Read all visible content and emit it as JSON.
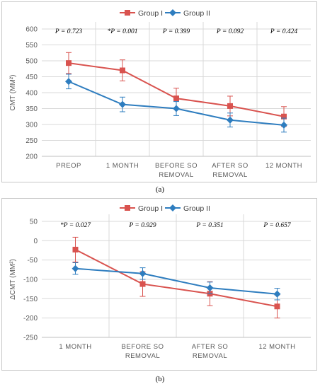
{
  "colors": {
    "group1": "#d9534f",
    "group2": "#2e7dbf",
    "grid": "#d9d9d9",
    "axis_text": "#595959"
  },
  "chart_data": [
    {
      "type": "line",
      "caption": "(a)",
      "legend": [
        "Group I",
        "Group II"
      ],
      "legend_position": "top",
      "ylabel": "CMT (MM²)",
      "ylim": [
        200,
        600
      ],
      "yticks": [
        200,
        250,
        300,
        350,
        400,
        450,
        500,
        550,
        600
      ],
      "grid": true,
      "categories": [
        [
          "PREOP"
        ],
        [
          "1 MONTH"
        ],
        [
          "BEFORE SO",
          "REMOVAL"
        ],
        [
          "AFTER SO",
          "REMOVAL"
        ],
        [
          "12 MONTH"
        ]
      ],
      "pvalues": [
        "P = 0.723",
        "*P = 0.001",
        "P = 0.399",
        "P = 0.092",
        "P = 0.424"
      ],
      "series": [
        {
          "name": "Group I",
          "values": [
            493,
            470,
            382,
            358,
            325
          ],
          "err": [
            33,
            33,
            32,
            31,
            31
          ]
        },
        {
          "name": "Group II",
          "values": [
            435,
            363,
            350,
            314,
            298
          ],
          "err": [
            23,
            23,
            22,
            22,
            22
          ]
        }
      ]
    },
    {
      "type": "line",
      "caption": "(b)",
      "legend": [
        "Group I",
        "Group II"
      ],
      "legend_position": "top",
      "ylabel": "ΔCMT (MM²)",
      "ylim": [
        -250,
        50
      ],
      "yticks": [
        -250,
        -200,
        -150,
        -100,
        -50,
        0,
        50
      ],
      "grid": true,
      "categories": [
        [
          "1 MONTH"
        ],
        [
          "BEFORE SO",
          "REMOVAL"
        ],
        [
          "AFTER SO",
          "REMOVAL"
        ],
        [
          "12 MONTH"
        ]
      ],
      "pvalues": [
        "*P = 0.027",
        "P = 0.929",
        "P = 0.351",
        "P = 0.657"
      ],
      "series": [
        {
          "name": "Group I",
          "values": [
            -23,
            -112,
            -137,
            -170
          ],
          "err": [
            32,
            32,
            31,
            30
          ]
        },
        {
          "name": "Group II",
          "values": [
            -72,
            -85,
            -122,
            -138
          ],
          "err": [
            15,
            15,
            15,
            15
          ]
        }
      ]
    }
  ]
}
